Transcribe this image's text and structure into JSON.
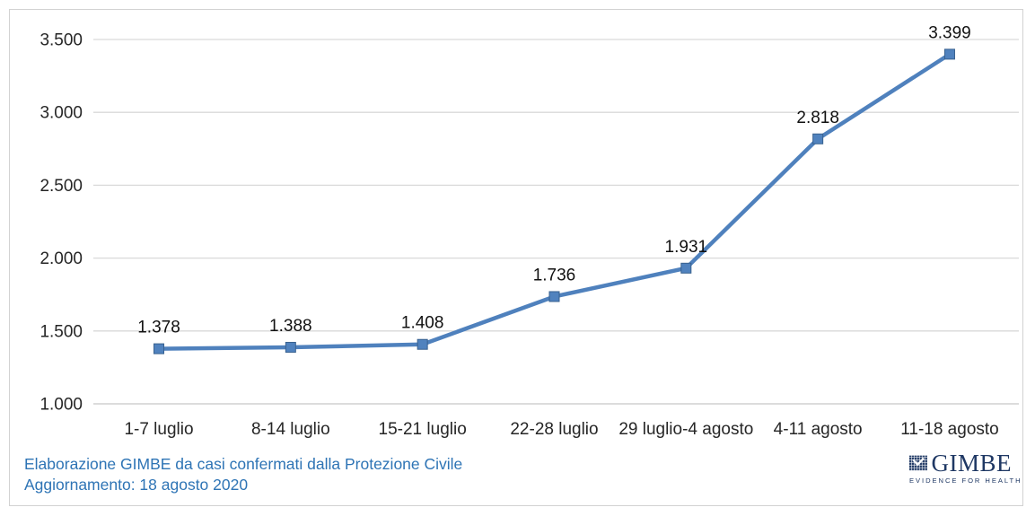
{
  "chart_data": {
    "type": "line",
    "title": "",
    "categories": [
      "1-7 luglio",
      "8-14 luglio",
      "15-21 luglio",
      "22-28 luglio",
      "29 luglio-4 agosto",
      "4-11 agosto",
      "11-18 agosto"
    ],
    "values": [
      1378,
      1388,
      1408,
      1736,
      1931,
      2818,
      3399
    ],
    "value_labels": [
      "1.378",
      "1.388",
      "1.408",
      "1.736",
      "1.931",
      "2.818",
      "3.399"
    ],
    "ylim": [
      1000,
      3500
    ],
    "y_tick_values": [
      1000,
      1500,
      2000,
      2500,
      3000,
      3500
    ],
    "y_tick_labels": [
      "1.000",
      "1.500",
      "2.000",
      "2.500",
      "3.000",
      "3.500"
    ],
    "grid": true,
    "legend_position": "none",
    "marker": "square",
    "line_color": "#4F81BD",
    "marker_fill": "#5082BE",
    "marker_stroke": "#38618F",
    "gridline_color": "#D9D9D9",
    "axis_line_color": "#C6C6C6"
  },
  "footer": {
    "source_line": "Elaborazione GIMBE da casi confermati dalla Protezione Civile",
    "update_line": "Aggiornamento: 18 agosto 2020",
    "text_color": "#2E74B5"
  },
  "logo": {
    "name": "GIMBE",
    "tagline": "EVIDENCE FOR HEALTH",
    "color": "#1F3864"
  }
}
